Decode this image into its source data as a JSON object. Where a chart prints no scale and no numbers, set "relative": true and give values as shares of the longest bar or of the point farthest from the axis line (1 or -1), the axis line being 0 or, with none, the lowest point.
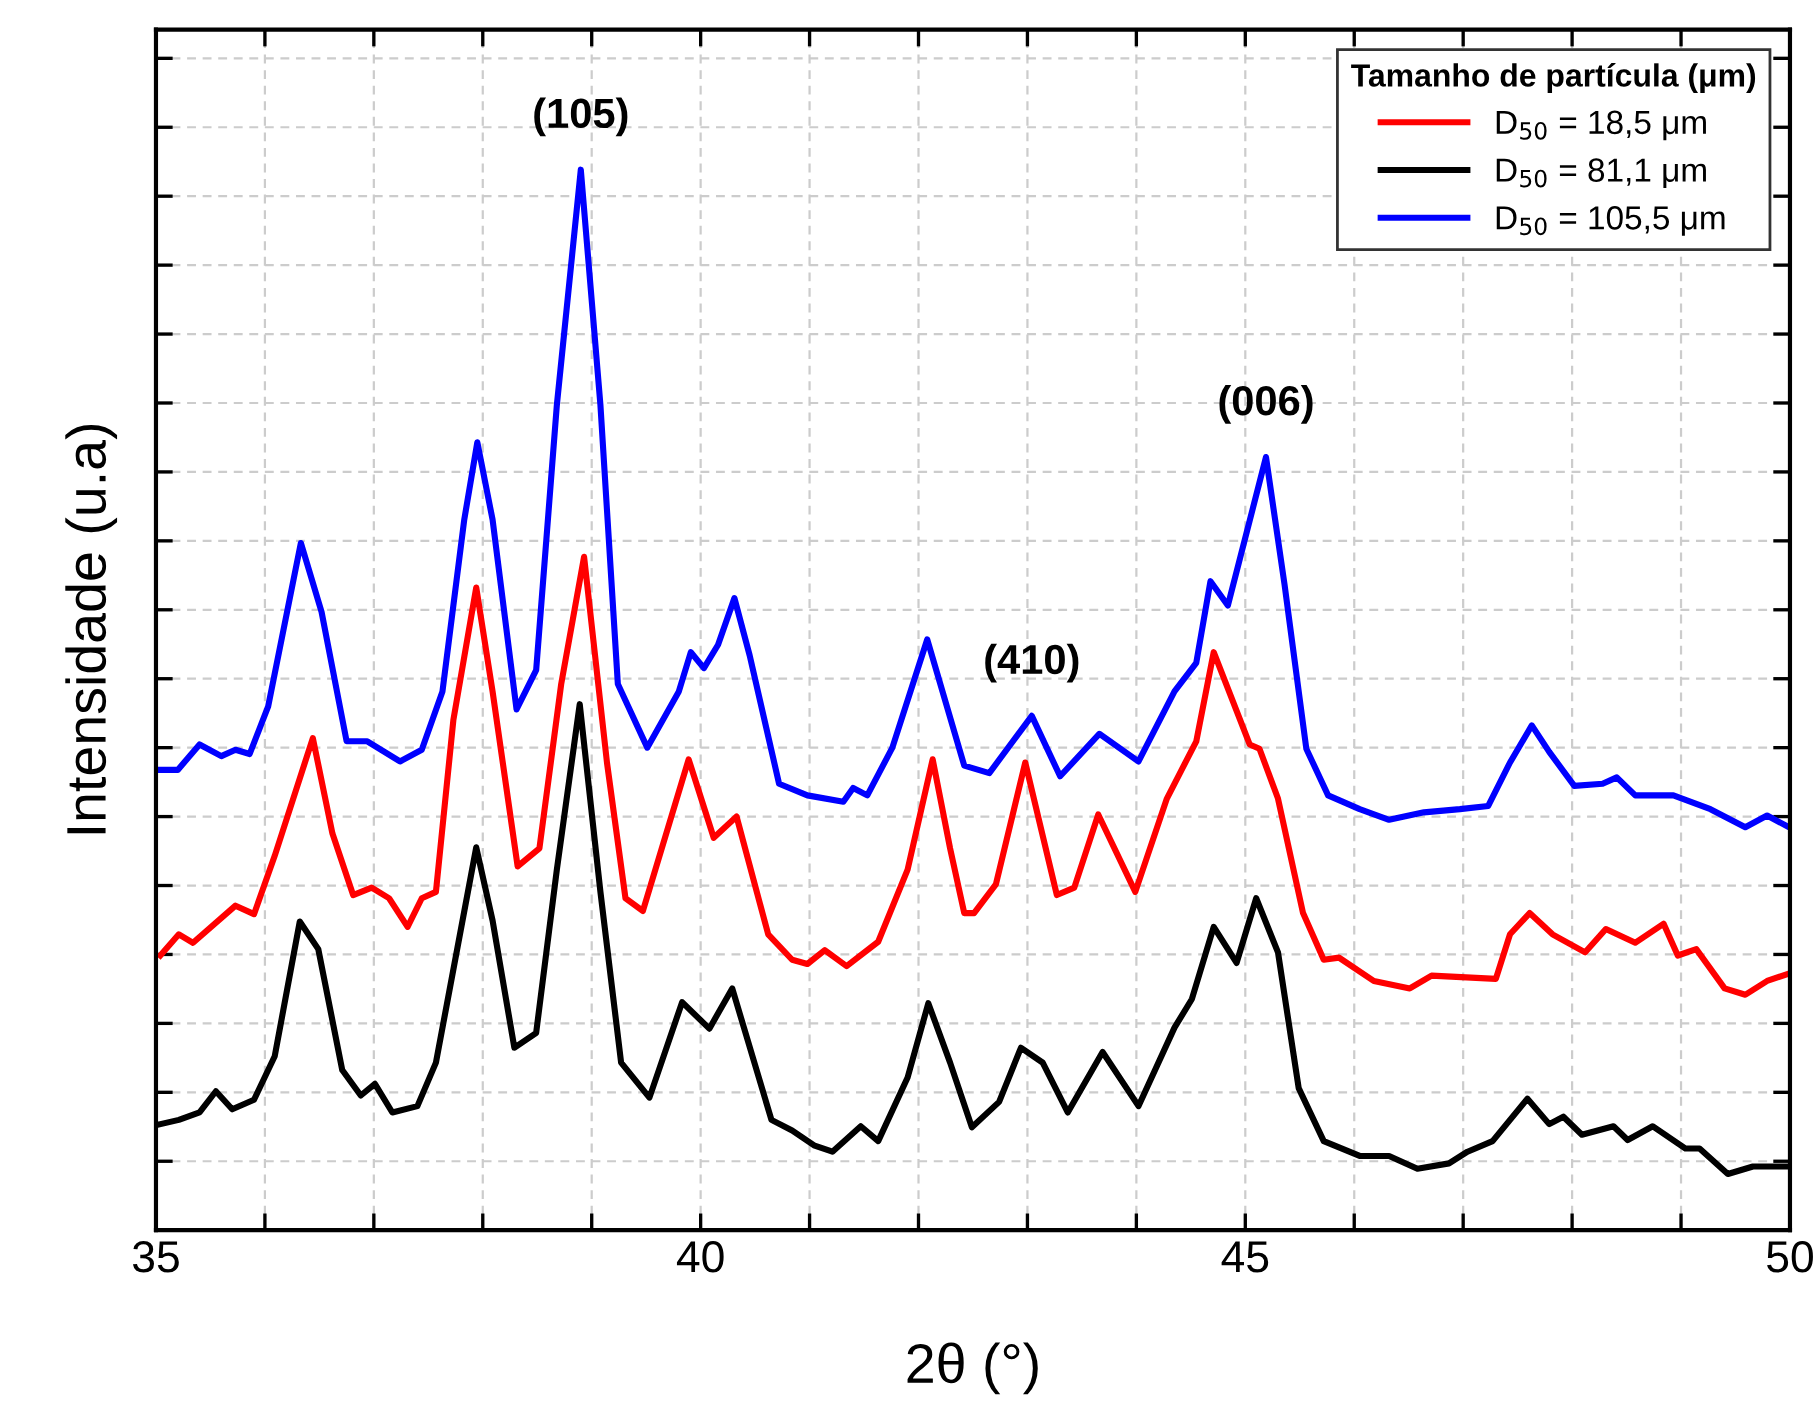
{
  "chart_data": {
    "type": "line",
    "relative": true,
    "xlabel": "2θ (°)",
    "ylabel": "Intensidade (u.a)",
    "legend_title": "Tamanho de partícula (μm)",
    "legend": "top right",
    "grid": true,
    "tick_labels": "x",
    "line_style": "solid",
    "marker": "none",
    "xlim": [
      35,
      50
    ],
    "xticks": [
      35,
      {
        "value": 36,
        "label": null
      },
      {
        "value": 37,
        "label": null
      },
      {
        "value": 38,
        "label": null
      },
      {
        "value": 39,
        "label": null
      },
      40,
      {
        "value": 41,
        "label": null
      },
      {
        "value": 42,
        "label": null
      },
      {
        "value": 43,
        "label": null
      },
      {
        "value": 44,
        "label": null
      },
      45,
      {
        "value": 46,
        "label": null
      },
      {
        "value": 47,
        "label": null
      },
      {
        "value": 48,
        "label": null
      },
      {
        "value": 49,
        "label": null
      },
      50
    ],
    "annotations": [
      {
        "text": "(105)",
        "x": 38.9,
        "y": 1.0
      },
      {
        "text": "(410)",
        "x": 43.04,
        "y": 0.485
      },
      {
        "text": "(006)",
        "x": 45.19,
        "y": 0.729
      }
    ],
    "series": [
      {
        "name": "D$_{50}$ = 18,5 μm",
        "color": "#ff0000",
        "x": [
          35.04,
          35.21,
          35.34,
          35.73,
          35.9,
          36.09,
          36.44,
          36.62,
          36.81,
          36.98,
          37.14,
          37.31,
          37.44,
          37.57,
          37.73,
          37.94,
          38.09,
          38.32,
          38.52,
          38.72,
          38.93,
          39.14,
          39.31,
          39.47,
          39.89,
          40.12,
          40.33,
          40.62,
          40.84,
          40.98,
          41.14,
          41.34,
          41.63,
          41.9,
          42.13,
          42.29,
          42.42,
          42.51,
          42.71,
          42.98,
          43.27,
          43.43,
          43.65,
          43.99,
          44.28,
          44.55,
          44.71,
          45.04,
          45.13,
          45.3,
          45.53,
          45.72,
          45.86,
          46.18,
          46.51,
          46.71,
          47.3,
          47.43,
          47.61,
          47.82,
          48.12,
          48.31,
          48.58,
          48.84,
          48.97,
          49.14,
          49.4,
          49.59,
          49.79,
          49.99
        ],
        "values": [
          0.259,
          0.279,
          0.271,
          0.306,
          0.298,
          0.353,
          0.464,
          0.374,
          0.316,
          0.323,
          0.313,
          0.286,
          0.313,
          0.319,
          0.481,
          0.606,
          0.508,
          0.343,
          0.36,
          0.515,
          0.635,
          0.441,
          0.313,
          0.301,
          0.444,
          0.37,
          0.39,
          0.279,
          0.255,
          0.251,
          0.264,
          0.249,
          0.272,
          0.34,
          0.444,
          0.36,
          0.299,
          0.299,
          0.326,
          0.441,
          0.316,
          0.323,
          0.392,
          0.319,
          0.407,
          0.461,
          0.545,
          0.458,
          0.454,
          0.407,
          0.299,
          0.255,
          0.257,
          0.235,
          0.228,
          0.24,
          0.237,
          0.279,
          0.299,
          0.279,
          0.262,
          0.284,
          0.271,
          0.289,
          0.259,
          0.265,
          0.228,
          0.222,
          0.235,
          0.242
        ]
      },
      {
        "name": "D$_{50}$ = 81,1 μm",
        "color": "#000000",
        "x": [
          35.04,
          35.21,
          35.4,
          35.55,
          35.7,
          35.9,
          36.09,
          36.32,
          36.49,
          36.71,
          36.88,
          37.01,
          37.17,
          37.4,
          37.57,
          37.94,
          38.09,
          38.29,
          38.49,
          38.68,
          38.89,
          39.08,
          39.27,
          39.53,
          39.83,
          40.08,
          40.29,
          40.65,
          40.84,
          41.04,
          41.21,
          41.47,
          41.63,
          41.9,
          42.09,
          42.29,
          42.49,
          42.74,
          42.94,
          43.14,
          43.37,
          43.69,
          44.02,
          44.35,
          44.51,
          44.71,
          44.92,
          45.1,
          45.3,
          45.49,
          45.72,
          46.05,
          46.32,
          46.58,
          46.87,
          47.04,
          47.27,
          47.59,
          47.79,
          47.92,
          48.09,
          48.38,
          48.51,
          48.74,
          49.04,
          49.17,
          49.43,
          49.66,
          49.99
        ],
        "values": [
          0.1,
          0.104,
          0.111,
          0.131,
          0.114,
          0.123,
          0.164,
          0.291,
          0.265,
          0.151,
          0.127,
          0.138,
          0.111,
          0.117,
          0.158,
          0.361,
          0.292,
          0.172,
          0.186,
          0.34,
          0.496,
          0.319,
          0.158,
          0.125,
          0.215,
          0.19,
          0.228,
          0.104,
          0.094,
          0.08,
          0.074,
          0.098,
          0.084,
          0.144,
          0.214,
          0.158,
          0.097,
          0.121,
          0.172,
          0.158,
          0.111,
          0.168,
          0.117,
          0.191,
          0.218,
          0.286,
          0.252,
          0.313,
          0.262,
          0.134,
          0.084,
          0.07,
          0.07,
          0.058,
          0.063,
          0.074,
          0.084,
          0.124,
          0.1,
          0.107,
          0.09,
          0.098,
          0.085,
          0.098,
          0.077,
          0.077,
          0.053,
          0.06,
          0.06
        ]
      },
      {
        "name": "D$_{50}$ = 105,5 μm",
        "color": "#0000ff",
        "x": [
          35.04,
          35.2,
          35.4,
          35.6,
          35.73,
          35.86,
          36.03,
          36.33,
          36.52,
          36.75,
          36.94,
          37.24,
          37.44,
          37.63,
          37.83,
          37.95,
          38.09,
          38.31,
          38.49,
          38.68,
          38.9,
          39.08,
          39.24,
          39.51,
          39.8,
          39.91,
          40.03,
          40.16,
          40.31,
          40.45,
          40.72,
          40.98,
          41.31,
          41.4,
          41.53,
          41.76,
          42.08,
          42.22,
          42.42,
          42.65,
          43.04,
          43.3,
          43.66,
          44.02,
          44.35,
          44.55,
          44.68,
          44.84,
          45.19,
          45.36,
          45.56,
          45.76,
          46.05,
          46.32,
          46.64,
          46.97,
          47.23,
          47.43,
          47.63,
          47.79,
          48.02,
          48.28,
          48.41,
          48.58,
          48.93,
          49.27,
          49.59,
          49.79,
          49.99
        ],
        "values": [
          0.434,
          0.434,
          0.458,
          0.447,
          0.453,
          0.449,
          0.494,
          0.648,
          0.583,
          0.461,
          0.461,
          0.442,
          0.453,
          0.508,
          0.67,
          0.743,
          0.67,
          0.491,
          0.528,
          0.778,
          1.0,
          0.778,
          0.515,
          0.455,
          0.508,
          0.545,
          0.53,
          0.552,
          0.596,
          0.542,
          0.421,
          0.41,
          0.404,
          0.417,
          0.41,
          0.455,
          0.557,
          0.508,
          0.438,
          0.431,
          0.485,
          0.428,
          0.468,
          0.442,
          0.508,
          0.535,
          0.612,
          0.589,
          0.729,
          0.609,
          0.454,
          0.41,
          0.397,
          0.387,
          0.394,
          0.397,
          0.4,
          0.441,
          0.476,
          0.451,
          0.419,
          0.421,
          0.427,
          0.41,
          0.41,
          0.397,
          0.38,
          0.391,
          0.38
        ]
      }
    ]
  }
}
